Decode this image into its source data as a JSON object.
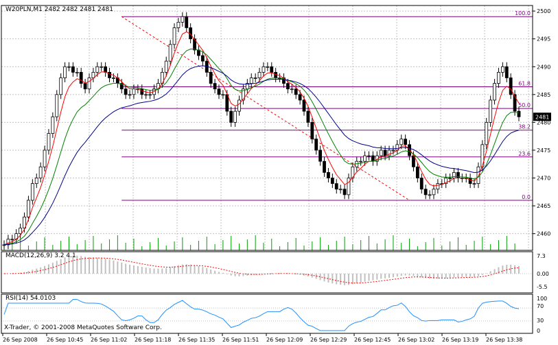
{
  "chart_header": "W20PLN,M1  2482 2482 2481 2481",
  "price_label": "2481",
  "price_axis_ticks": [
    "2500",
    "2495",
    "2490",
    "2485",
    "2480",
    "2475",
    "2470",
    "2465",
    "2460"
  ],
  "fibo_levels": [
    "100.0",
    "61.8",
    "50.0",
    "38.2",
    "23.6",
    "0.0"
  ],
  "macd_header": "MACD(12,26,9) 3.2 4.1",
  "macd_axis": [
    "7.3",
    "0.00",
    "-5.5"
  ],
  "rsi_header": "RSI(14) 54.0103",
  "rsi_axis": [
    "100",
    "70",
    "30",
    "0"
  ],
  "footer": "X-Trader, © 2001-2008 MetaQuotes Software Corp.",
  "time_axis": [
    "26 Sep 2008",
    "26 Sep 10:45",
    "26 Sep 11:02",
    "26 Sep 11:18",
    "26 Sep 11:35",
    "26 Sep 11:51",
    "26 Sep 12:09",
    "26 Sep 12:29",
    "26 Sep 12:45",
    "26 Sep 13:02",
    "26 Sep 13:19",
    "26 Sep 13:38"
  ],
  "colors": {
    "grid": "#c0c0c0",
    "ma_fast": "#ff0000",
    "ma_mid": "#008000",
    "ma_slow": "#00008b",
    "fibo": "#800080",
    "macd_signal": "#ff0000",
    "macd_hist": "#c0c0c0",
    "rsi": "#1e90ff",
    "volume": "#00a000",
    "price_label_bg": "#000000"
  },
  "chart_data": {
    "type": "line",
    "title": "W20PLN,M1",
    "y_range": [
      2457,
      2501
    ],
    "close_series": [
      2458,
      2459,
      2459,
      2460,
      2461,
      2463,
      2466,
      2469,
      2470,
      2472,
      2475,
      2478,
      2481,
      2485,
      2488,
      2490,
      2490,
      2489,
      2489,
      2487,
      2486,
      2488,
      2489,
      2490,
      2490,
      2489,
      2488,
      2488,
      2487,
      2486,
      2485,
      2485,
      2486,
      2486,
      2485,
      2485,
      2485,
      2486,
      2487,
      2489,
      2491,
      2494,
      2497,
      2498,
      2499,
      2497,
      2495,
      2493,
      2492,
      2491,
      2489,
      2487,
      2486,
      2485,
      2485,
      2482,
      2480,
      2482,
      2484,
      2486,
      2487,
      2488,
      2488,
      2489,
      2490,
      2490,
      2489,
      2488,
      2488,
      2487,
      2486,
      2486,
      2485,
      2484,
      2482,
      2480,
      2477,
      2475,
      2473,
      2471,
      2470,
      2469,
      2468,
      2468,
      2467,
      2470,
      2472,
      2473,
      2473,
      2474,
      2474,
      2473,
      2474,
      2475,
      2474,
      2475,
      2475,
      2476,
      2477,
      2476,
      2474,
      2472,
      2470,
      2468,
      2467,
      2467,
      2468,
      2469,
      2469,
      2470,
      2470,
      2471,
      2470,
      2470,
      2470,
      2469,
      2469,
      2472,
      2476,
      2480,
      2484,
      2487,
      2489,
      2490,
      2488,
      2485,
      2482,
      2481
    ],
    "fibo_retracement": {
      "high": 2499,
      "low": 2466,
      "levels": [
        "100.0",
        "61.8",
        "50.0",
        "38.2",
        "23.6",
        "0.0"
      ]
    },
    "indicators": [
      "MACD(12,26,9)",
      "RSI(14)"
    ]
  }
}
